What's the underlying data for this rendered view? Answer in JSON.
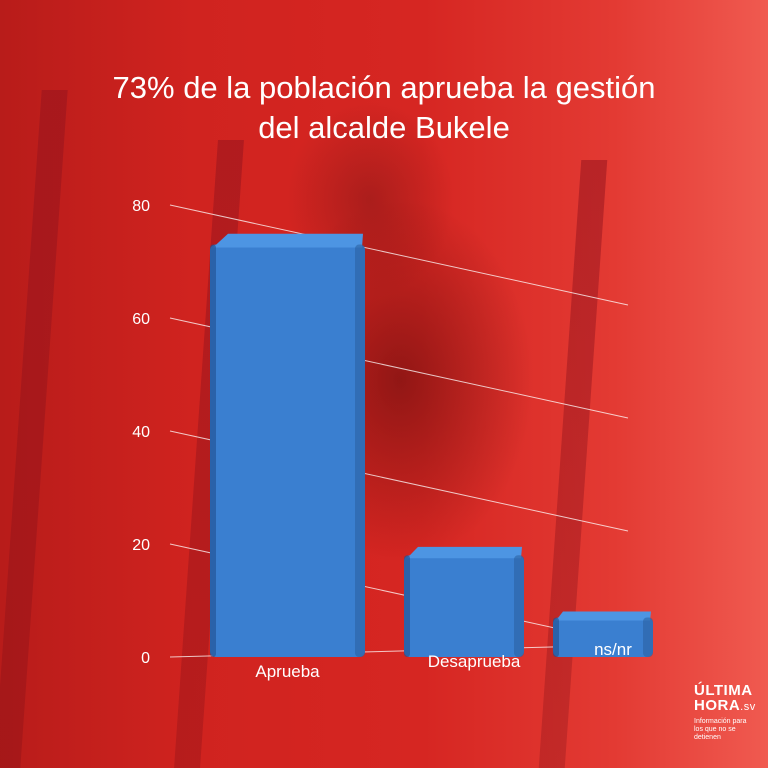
{
  "title_line1": "73% de la población aprueba la gestión",
  "title_line2": "del alcalde Bukele",
  "colors": {
    "background": "#d62622",
    "bar": "#3a7fd0",
    "bar_top": "#4d95e3",
    "bar_side": "#2a5e9e",
    "text": "#ffffff"
  },
  "logo": {
    "line1": "ÚLTIMA",
    "line2": "HORA",
    "suffix": ".sv",
    "tagline": "Información para los que no se detienen"
  },
  "chart_data": {
    "type": "bar",
    "title": "73% de la población aprueba la gestión del alcalde Bukele",
    "categories": [
      "Aprueba",
      "Desaprueba",
      "ns/nr"
    ],
    "values": [
      73,
      18,
      7
    ],
    "ylim": [
      0,
      80
    ],
    "yticks": [
      0,
      20,
      40,
      60,
      80
    ],
    "grid": true,
    "legend": "none"
  }
}
